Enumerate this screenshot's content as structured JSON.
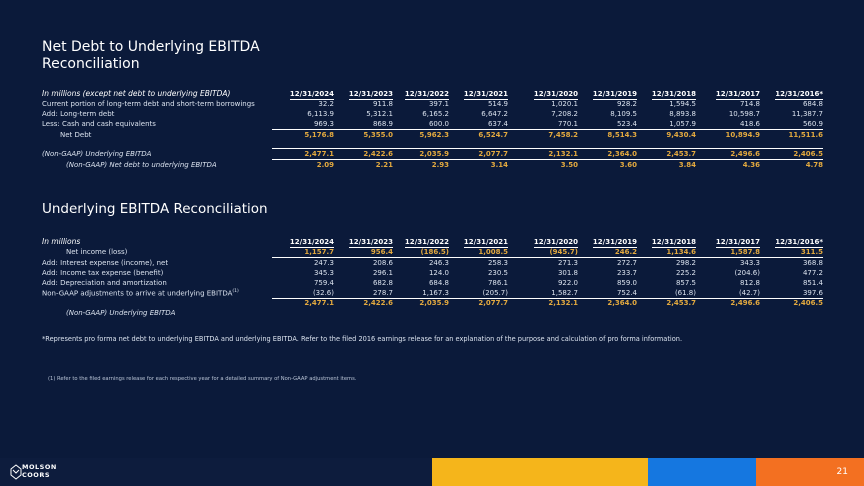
{
  "title_line1": "Net Debt to Underlying EBITDA",
  "title_line2": "Reconciliation",
  "table1": {
    "header_label": "In millions (except net debt to underlying EBITDA)",
    "columns": [
      "12/31/2024",
      "12/31/2023",
      "12/31/2022",
      "12/31/2021",
      "12/31/2020",
      "12/31/2019",
      "12/31/2018",
      "12/31/2017",
      "12/31/2016*"
    ],
    "rows": [
      {
        "label": "Current portion of long-term debt and short-term borrowings",
        "values": [
          "32.2",
          "911.8",
          "397.1",
          "514.9",
          "1,020.1",
          "928.2",
          "1,594.5",
          "714.8",
          "684.8"
        ]
      },
      {
        "label": "Add: Long-term debt",
        "values": [
          "6,113.9",
          "5,312.1",
          "6,165.2",
          "6,647.2",
          "7,208.2",
          "8,109.5",
          "8,893.8",
          "10,598.7",
          "11,387.7"
        ]
      },
      {
        "label": "Less: Cash and cash equivalents",
        "values": [
          "969.3",
          "868.9",
          "600.0",
          "637.4",
          "770.1",
          "523.4",
          "1,057.9",
          "418.6",
          "560.9"
        ]
      }
    ],
    "net_debt": {
      "label": "Net Debt",
      "values": [
        "5,176.8",
        "5,355.0",
        "5,962.3",
        "6,524.7",
        "7,458.2",
        "8,514.3",
        "9,430.4",
        "10,894.9",
        "11,511.6"
      ]
    },
    "ebitda": {
      "label": "(Non-GAAP) Underlying EBITDA",
      "values": [
        "2,477.1",
        "2,422.6",
        "2,035.9",
        "2,077.7",
        "2,132.1",
        "2,364.0",
        "2,453.7",
        "2,496.6",
        "2,406.5"
      ]
    },
    "ratio": {
      "label": "(Non-GAAP) Net debt to underlying EBITDA",
      "values": [
        "2.09",
        "2.21",
        "2.93",
        "3.14",
        "3.50",
        "3.60",
        "3.84",
        "4.36",
        "4.78"
      ]
    }
  },
  "subtitle": "Underlying EBITDA Reconciliation",
  "table2": {
    "header_label": "In millions",
    "columns": [
      "12/31/2024",
      "12/31/2023",
      "12/31/2022",
      "12/31/2021",
      "12/31/2020",
      "12/31/2019",
      "12/31/2018",
      "12/31/2017",
      "12/31/2016*"
    ],
    "net_income": {
      "label": "Net income (loss)",
      "values": [
        "1,157.7",
        "956.4",
        "(186.5)",
        "1,008.5",
        "(945.7)",
        "246.2",
        "1,134.6",
        "1,587.8",
        "311.5"
      ]
    },
    "rows": [
      {
        "label": "Add: Interest expense (income), net",
        "values": [
          "247.3",
          "208.6",
          "246.3",
          "258.3",
          "271.3",
          "272.7",
          "298.2",
          "343.3",
          "368.8"
        ]
      },
      {
        "label": "Add: Income tax expense (benefit)",
        "values": [
          "345.3",
          "296.1",
          "124.0",
          "230.5",
          "301.8",
          "233.7",
          "225.2",
          "(204.6)",
          "477.2"
        ]
      },
      {
        "label": "Add: Depreciation and amortization",
        "values": [
          "759.4",
          "682.8",
          "684.8",
          "786.1",
          "922.0",
          "859.0",
          "857.5",
          "812.8",
          "851.4"
        ]
      },
      {
        "label": "Non-GAAP adjustments to arrive at underlying EBITDA",
        "label_sup": "(1)",
        "values": [
          "(32.6)",
          "278.7",
          "1,167.3",
          "(205.7)",
          "1,582.7",
          "752.4",
          "(61.8)",
          "(42.7)",
          "397.6"
        ]
      }
    ],
    "ebitda": {
      "label": "(Non-GAAP) Underlying EBITDA",
      "values": [
        "2,477.1",
        "2,422.6",
        "2,035.9",
        "2,077.7",
        "2,132.1",
        "2,364.0",
        "2,453.7",
        "2,496.6",
        "2,406.5"
      ]
    }
  },
  "note": "*Represents pro forma net debt to underlying EBITDA and underlying EBITDA. Refer to the filed 2016 earnings release for an explanation of the purpose and calculation of pro forma information.",
  "footnote": "(1) Refer to the filed earnings release for each respective year for a detailed summary of Non-GAAP adjustment items.",
  "logo_line1": "MOLSON",
  "logo_line2": "COORS",
  "page_number": "21",
  "colors": {
    "background": "#0b1a3a",
    "accent_gold": "#e4aa3f",
    "bar_gold": "#f5b51b",
    "bar_blue": "#1577e0",
    "bar_orange": "#f37021"
  }
}
